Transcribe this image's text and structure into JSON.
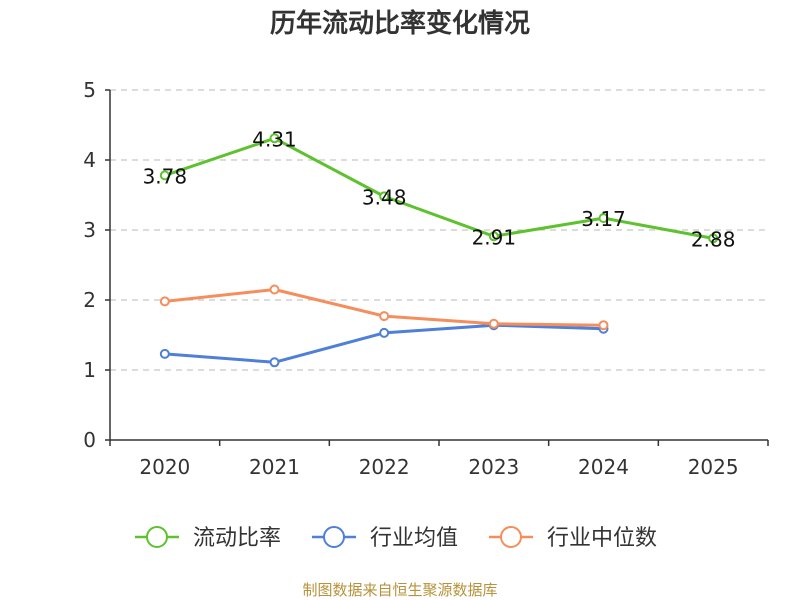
{
  "chart_data": {
    "type": "line",
    "title": "历年流动比率变化情况",
    "categories": [
      "2020",
      "2021",
      "2022",
      "2023",
      "2024",
      "2025"
    ],
    "ylim": [
      0,
      5
    ],
    "yticks": [
      0,
      1,
      2,
      3,
      4,
      5
    ],
    "grid": true,
    "legend_position": "bottom",
    "series": [
      {
        "name": "流动比率",
        "color": "#5ec12e",
        "values": [
          3.78,
          4.31,
          3.48,
          2.91,
          3.17,
          2.88
        ],
        "labels": [
          "3.78",
          "4.31",
          "3.48",
          "2.91",
          "3.17",
          "2.88"
        ]
      },
      {
        "name": "行业均值",
        "color": "#4f7fd6",
        "values": [
          1.23,
          1.11,
          1.53,
          1.64,
          1.59,
          null
        ]
      },
      {
        "name": "行业中位数",
        "color": "#f58e5c",
        "values": [
          1.98,
          2.15,
          1.77,
          1.66,
          1.64,
          null
        ]
      }
    ],
    "source": "制图数据来自恒生聚源数据库"
  }
}
